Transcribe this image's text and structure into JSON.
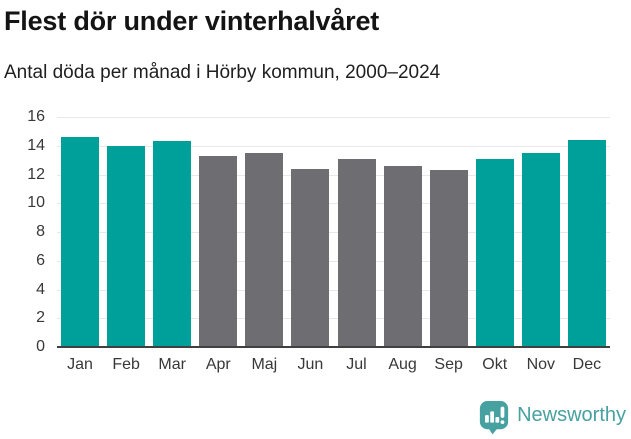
{
  "title": "Flest dör under vinterhalvåret",
  "subtitle": "Antal döda per månad i Hörby kommun, 2000–2024",
  "colors": {
    "highlight": "#00a09a",
    "muted": "#6d6d72",
    "gridline": "#e8e8e8",
    "axis": "#404040",
    "brand": "#46a1a0"
  },
  "chart_data": {
    "type": "bar",
    "categories": [
      "Jan",
      "Feb",
      "Mar",
      "Apr",
      "Maj",
      "Jun",
      "Jul",
      "Aug",
      "Sep",
      "Okt",
      "Nov",
      "Dec"
    ],
    "values": [
      14.6,
      14.0,
      14.3,
      13.3,
      13.5,
      12.4,
      13.1,
      12.6,
      12.3,
      13.1,
      13.5,
      14.4
    ],
    "highlighted": [
      true,
      true,
      true,
      false,
      false,
      false,
      false,
      false,
      false,
      true,
      true,
      true
    ],
    "series_colors": {
      "winter_highlight": "#00a09a",
      "summer_muted": "#6d6d72"
    },
    "title": "Flest dör under vinterhalvåret",
    "subtitle": "Antal döda per månad i Hörby kommun, 2000–2024",
    "xlabel": "",
    "ylabel": "",
    "ylim": [
      0,
      16
    ],
    "yticks": [
      0,
      2,
      4,
      6,
      8,
      10,
      12,
      14,
      16
    ],
    "grid": true,
    "legend": false
  },
  "footer": {
    "brand": "Newsworthy",
    "logo_icon": "newsworthy-speech-bubble-bar-chart-icon"
  }
}
